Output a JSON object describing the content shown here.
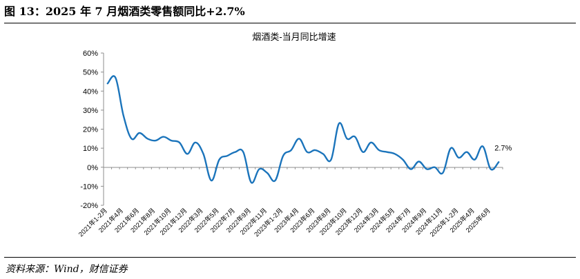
{
  "figure": {
    "header": "图 13：2025 年 7 月烟酒类零售额同比+2.7%",
    "source": "资料来源：Wind，财信证券"
  },
  "chart_data": {
    "type": "line",
    "title": "烟酒类-当月同比增速",
    "xlabel": "",
    "ylabel": "",
    "ylim": [
      -20,
      60
    ],
    "yticks": [
      -20,
      -10,
      0,
      10,
      20,
      30,
      40,
      50,
      60
    ],
    "ytick_labels": [
      "-20%",
      "-10%",
      "0%",
      "10%",
      "20%",
      "30%",
      "40%",
      "50%",
      "60%"
    ],
    "grid": false,
    "legend": "none",
    "series_color": "#1b74bb",
    "x": [
      "2021年1-2月",
      "2021年3月",
      "2021年4月",
      "2021年5月",
      "2021年6月",
      "2021年7月",
      "2021年8月",
      "2021年9月",
      "2021年10月",
      "2021年11月",
      "2021年12月",
      "2022年1-2月",
      "2022年3月",
      "2022年4月",
      "2022年5月",
      "2022年6月",
      "2022年7月",
      "2022年8月",
      "2022年9月",
      "2022年10月",
      "2022年11月",
      "2022年12月",
      "2023年1-2月",
      "2023年3月",
      "2023年4月",
      "2023年5月",
      "2023年6月",
      "2023年7月",
      "2023年8月",
      "2023年9月",
      "2023年10月",
      "2023年11月",
      "2023年12月",
      "2024年1-2月",
      "2024年3月",
      "2024年4月",
      "2024年5月",
      "2024年6月",
      "2024年7月",
      "2024年8月",
      "2024年9月",
      "2024年10月",
      "2024年11月",
      "2024年12月",
      "2025年1-2月",
      "2025年3月",
      "2025年4月",
      "2025年5月",
      "2025年6月",
      "2025年7月"
    ],
    "x_tick_labels": [
      "2021年1-2月",
      "2021年4月",
      "2021年6月",
      "2021年8月",
      "2021年10月",
      "2021年12月",
      "2022年3月",
      "2022年5月",
      "2022年7月",
      "2022年9月",
      "2022年11月",
      "2023年1-2月",
      "2023年4月",
      "2023年6月",
      "2023年8月",
      "2023年10月",
      "2023年12月",
      "2024年3月",
      "2024年5月",
      "2024年7月",
      "2024年9月",
      "2024年11月",
      "2025年1-2月",
      "2025年4月",
      "2025年6月"
    ],
    "series": [
      {
        "values": [
          44,
          47,
          27,
          15,
          18,
          15,
          14,
          16,
          14,
          13,
          7,
          13,
          7,
          -7,
          4,
          6,
          8,
          8,
          -8,
          -1,
          -3,
          -7,
          6,
          9,
          15,
          8,
          9,
          7,
          4,
          23,
          15,
          16,
          8,
          13,
          9,
          8,
          7,
          4,
          -1,
          3,
          -1,
          0,
          -3,
          10,
          5,
          8,
          4,
          11,
          -1,
          2.7
        ]
      }
    ],
    "annotations": [
      {
        "text": "2.7%",
        "x": "2025年7月",
        "y": 2.7
      }
    ]
  }
}
